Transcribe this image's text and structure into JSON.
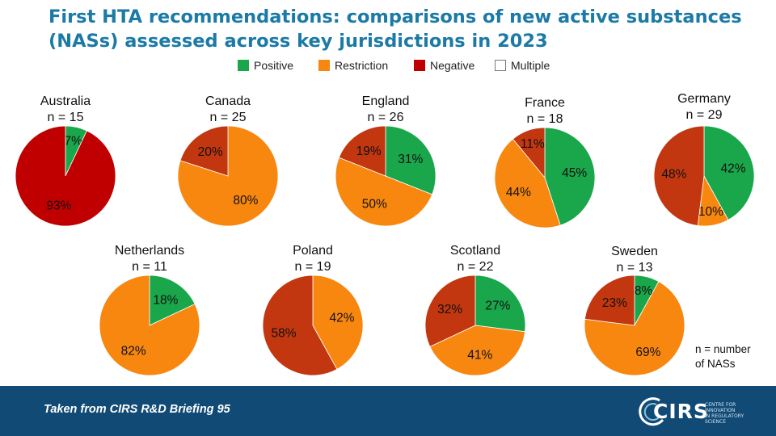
{
  "title": "First HTA recommendations: comparisons of new active substances (NASs) assessed across key jurisdictions in 2023",
  "legend": [
    {
      "label": "Positive",
      "color": "#1aa64a"
    },
    {
      "label": "Restriction",
      "color": "#f7870f"
    },
    {
      "label": "Negative",
      "color": "#c00000"
    },
    {
      "label": "Multiple",
      "color": "#ffffff"
    }
  ],
  "chart_data": {
    "type": "pie",
    "title": "First HTA recommendations: comparisons of new active substances (NASs) assessed across key jurisdictions in 2023",
    "legend_position": "top-center",
    "categories": [
      "Positive",
      "Restriction",
      "Negative",
      "Multiple"
    ],
    "charts": [
      {
        "name": "Australia",
        "n_label": "n = 15",
        "slices": [
          {
            "category": "Positive",
            "value": 7,
            "label": "7%",
            "color": "#1aa64a"
          },
          {
            "category": "Negative",
            "value": 93,
            "label": "93%",
            "color": "#c00000"
          }
        ]
      },
      {
        "name": "Canada",
        "n_label": "n = 25",
        "slices": [
          {
            "category": "Restriction",
            "value": 80,
            "label": "80%",
            "color": "#f7870f"
          },
          {
            "category": "Negative",
            "value": 20,
            "label": "20%",
            "color": "#c2370f"
          }
        ]
      },
      {
        "name": "England",
        "n_label": "n = 26",
        "slices": [
          {
            "category": "Positive",
            "value": 31,
            "label": "31%",
            "color": "#1aa64a"
          },
          {
            "category": "Restriction",
            "value": 50,
            "label": "50%",
            "color": "#f7870f"
          },
          {
            "category": "Negative",
            "value": 19,
            "label": "19%",
            "color": "#c2370f"
          }
        ]
      },
      {
        "name": "France",
        "n_label": "n = 18",
        "slices": [
          {
            "category": "Positive",
            "value": 45,
            "label": "45%",
            "color": "#1aa64a"
          },
          {
            "category": "Restriction",
            "value": 44,
            "label": "44%",
            "color": "#f7870f"
          },
          {
            "category": "Negative",
            "value": 11,
            "label": "11%",
            "color": "#c2370f"
          }
        ]
      },
      {
        "name": "Germany",
        "n_label": "n = 29",
        "slices": [
          {
            "category": "Positive",
            "value": 42,
            "label": "42%",
            "color": "#1aa64a"
          },
          {
            "category": "Restriction",
            "value": 10,
            "label": "10%",
            "color": "#f7870f"
          },
          {
            "category": "Negative",
            "value": 48,
            "label": "48%",
            "color": "#c2370f"
          }
        ]
      },
      {
        "name": "Netherlands",
        "n_label": "n = 11",
        "slices": [
          {
            "category": "Positive",
            "value": 18,
            "label": "18%",
            "color": "#1aa64a"
          },
          {
            "category": "Restriction",
            "value": 82,
            "label": "82%",
            "color": "#f7870f"
          }
        ]
      },
      {
        "name": "Poland",
        "n_label": "n = 19",
        "slices": [
          {
            "category": "Restriction",
            "value": 42,
            "label": "42%",
            "color": "#f7870f"
          },
          {
            "category": "Negative",
            "value": 58,
            "label": "58%",
            "color": "#c2370f"
          }
        ]
      },
      {
        "name": "Scotland",
        "n_label": "n = 22",
        "slices": [
          {
            "category": "Positive",
            "value": 27,
            "label": "27%",
            "color": "#1aa64a"
          },
          {
            "category": "Restriction",
            "value": 41,
            "label": "41%",
            "color": "#f7870f"
          },
          {
            "category": "Negative",
            "value": 32,
            "label": "32%",
            "color": "#c2370f"
          }
        ]
      },
      {
        "name": "Sweden",
        "n_label": "n = 13",
        "slices": [
          {
            "category": "Positive",
            "value": 8,
            "label": "8%",
            "color": "#1aa64a"
          },
          {
            "category": "Restriction",
            "value": 69,
            "label": "69%",
            "color": "#f7870f"
          },
          {
            "category": "Negative",
            "value": 23,
            "label": "23%",
            "color": "#c2370f"
          }
        ]
      }
    ]
  },
  "footnote": {
    "line1": "n = number",
    "line2": "of NASs"
  },
  "footer": {
    "source": "Taken from CIRS R&D Briefing 95",
    "logo_text": "CIRS",
    "logo_sub_line1": "CENTRE FOR INNOVATION",
    "logo_sub_line2": "IN REGULATORY SCIENCE"
  }
}
